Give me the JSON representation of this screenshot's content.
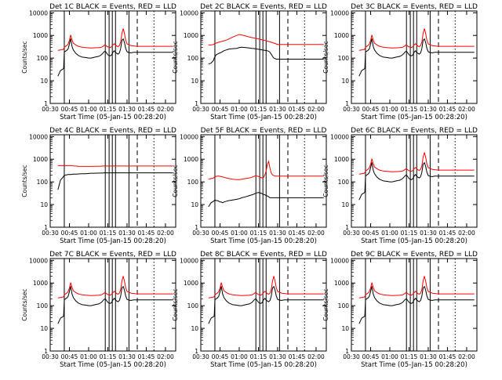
{
  "figure": {
    "y_axis_label": "Counts/sec",
    "x_axis_label": "Start Time (05-Jan-15 00:28:20)",
    "series_colors": {
      "events": "#000000",
      "lld": "#ff0000"
    },
    "panels": [
      {
        "title": "Det 1C BLACK = Events, RED = LLD"
      },
      {
        "title": "Det 2C BLACK = Events, RED = LLD"
      },
      {
        "title": "Det 3C BLACK = Events, RED = LLD"
      },
      {
        "title": "Det 4C BLACK = Events, RED = LLD"
      },
      {
        "title": "Det 5F BLACK = Events, RED = LLD"
      },
      {
        "title": "Det 6C BLACK = Events, RED = LLD"
      },
      {
        "title": "Det 7C BLACK = Events, RED = LLD"
      },
      {
        "title": "Det 8C BLACK = Events, RED = LLD"
      },
      {
        "title": "Det 9C BLACK = Events, RED = LLD"
      }
    ]
  },
  "chart_data": {
    "type": "line",
    "layout": "3x3 small multiples",
    "x_ticks": [
      "00:30",
      "00:45",
      "01:00",
      "01:15",
      "01:30",
      "01:45",
      "02:00"
    ],
    "x_tick_minutes": [
      30,
      45,
      60,
      75,
      90,
      105,
      120
    ],
    "xlim_minutes": [
      30,
      128
    ],
    "y_scale": "log",
    "ylim": [
      1,
      12000
    ],
    "y_ticks": [
      1,
      10,
      100,
      1000,
      10000
    ],
    "y_tick_labels": [
      "1",
      "10",
      "100",
      "1000",
      "10000"
    ],
    "vertical_markers": [
      {
        "style": "solid",
        "minutes": [
          41,
          73,
          76,
          78.5,
          81,
          91.5
        ]
      },
      {
        "style": "dashed",
        "minutes": [
          98
        ]
      },
      {
        "style": "dotted",
        "minutes": [
          111
        ]
      }
    ],
    "series_names": [
      "Events",
      "LLD"
    ],
    "series_x_minutes": [
      36,
      38,
      40,
      40.5,
      41,
      42,
      43,
      44,
      45,
      46,
      47,
      48,
      50,
      52,
      55,
      58,
      60,
      62,
      65,
      68,
      70,
      71,
      72,
      73,
      74,
      75,
      76,
      77,
      78,
      79,
      80,
      81,
      82,
      83,
      84,
      85,
      86,
      87,
      88,
      89,
      90,
      91,
      92,
      93,
      94,
      95,
      96,
      97,
      98,
      99,
      100,
      101,
      102,
      103,
      104,
      105,
      106,
      108,
      110,
      112,
      114,
      116,
      118,
      120,
      122,
      124,
      126
    ],
    "events": {
      "standard": [
        16,
        28,
        33,
        35,
        180,
        200,
        220,
        260,
        420,
        720,
        330,
        230,
        160,
        130,
        110,
        105,
        100,
        100,
        110,
        120,
        140,
        160,
        190,
        200,
        170,
        140,
        130,
        125,
        140,
        180,
        210,
        180,
        160,
        150,
        170,
        260,
        600,
        700,
        480,
        260,
        190,
        180,
        175,
        170,
        175,
        180,
        180,
        180,
        180,
        180,
        180,
        180,
        180,
        180,
        180,
        180,
        180,
        180,
        180,
        180,
        180,
        180,
        180,
        180,
        180,
        180,
        180
      ],
      "det2_events": [
        55,
        60,
        80,
        100,
        110,
        140,
        150,
        160,
        170,
        180,
        195,
        210,
        230,
        250,
        260,
        270,
        290,
        300,
        290,
        280,
        270,
        265,
        260,
        255,
        250,
        245,
        240,
        235,
        230,
        225,
        220,
        215,
        210,
        200,
        180,
        150,
        120,
        100,
        95,
        90,
        90,
        90,
        90,
        90,
        90,
        90,
        90,
        90,
        90,
        90,
        90,
        90,
        90,
        90,
        90,
        90,
        90,
        90,
        90,
        90,
        90,
        90,
        90,
        90,
        90,
        90,
        90
      ],
      "det4_events": [
        45,
        120,
        160,
        180,
        190,
        200,
        205,
        210,
        210,
        210,
        215,
        220,
        220,
        225,
        230,
        230,
        235,
        240,
        240,
        245,
        245,
        245,
        250,
        250,
        250,
        250,
        250,
        250,
        250,
        250,
        250,
        250,
        250,
        250,
        250,
        250,
        250,
        250,
        250,
        250,
        250,
        250,
        250,
        250,
        250,
        250,
        250,
        250,
        250,
        250,
        250,
        250,
        250,
        250,
        250,
        250,
        250,
        250,
        250,
        250,
        250,
        250,
        250,
        250,
        250,
        250,
        250
      ],
      "det5_events": [
        8,
        12,
        14,
        15,
        16,
        15,
        15,
        14,
        13,
        13,
        12,
        13,
        14,
        15,
        16,
        17,
        18,
        20,
        22,
        25,
        27,
        28,
        30,
        32,
        33,
        34,
        33,
        32,
        30,
        28,
        27,
        25,
        24,
        22,
        20,
        20,
        20,
        20,
        20,
        20,
        20,
        20,
        20,
        20,
        20,
        20,
        20,
        20,
        20,
        20,
        20,
        20,
        20,
        20,
        20,
        20,
        20,
        20,
        20,
        20,
        20,
        20,
        20,
        20,
        20,
        20,
        20
      ]
    },
    "lld": {
      "standard": [
        220,
        230,
        240,
        250,
        300,
        330,
        360,
        420,
        600,
        1050,
        650,
        460,
        380,
        330,
        300,
        290,
        285,
        280,
        285,
        290,
        300,
        320,
        360,
        380,
        340,
        310,
        300,
        295,
        320,
        380,
        430,
        380,
        340,
        320,
        360,
        500,
        1200,
        2000,
        1200,
        600,
        420,
        400,
        380,
        360,
        350,
        345,
        340,
        335,
        330,
        330,
        330,
        330,
        330,
        330,
        330,
        330,
        330,
        330,
        330,
        330,
        330,
        330,
        330,
        330,
        330,
        330,
        330
      ],
      "det2_lld": [
        380,
        380,
        400,
        420,
        440,
        460,
        480,
        500,
        520,
        540,
        560,
        580,
        620,
        700,
        850,
        1000,
        1100,
        1050,
        950,
        850,
        800,
        780,
        760,
        740,
        720,
        700,
        680,
        660,
        640,
        620,
        600,
        580,
        560,
        540,
        520,
        500,
        480,
        460,
        440,
        420,
        400,
        400,
        400,
        400,
        400,
        400,
        400,
        400,
        400,
        400,
        400,
        400,
        400,
        400,
        400,
        400,
        400,
        400,
        400,
        400,
        400,
        400,
        400,
        400,
        400,
        400,
        400
      ],
      "det4_lld": [
        520,
        520,
        520,
        520,
        520,
        520,
        520,
        520,
        520,
        520,
        520,
        510,
        500,
        490,
        480,
        480,
        480,
        480,
        485,
        490,
        495,
        500,
        500,
        500,
        500,
        500,
        500,
        500,
        500,
        500,
        500,
        500,
        500,
        500,
        500,
        500,
        500,
        500,
        500,
        500,
        500,
        500,
        500,
        500,
        500,
        500,
        500,
        500,
        500,
        500,
        500,
        500,
        500,
        500,
        500,
        500,
        500,
        500,
        500,
        500,
        500,
        500,
        500,
        500,
        500,
        500,
        500
      ],
      "det5_lld": [
        130,
        140,
        150,
        160,
        170,
        175,
        180,
        180,
        175,
        170,
        165,
        160,
        150,
        140,
        130,
        125,
        125,
        130,
        140,
        150,
        160,
        170,
        180,
        185,
        180,
        175,
        165,
        155,
        150,
        160,
        200,
        300,
        600,
        800,
        400,
        250,
        200,
        190,
        180,
        180,
        180,
        180,
        180,
        180,
        180,
        180,
        180,
        180,
        180,
        180,
        180,
        180,
        180,
        180,
        180,
        180,
        180,
        180,
        180,
        180,
        180,
        180,
        180,
        180,
        180,
        180,
        180
      ]
    },
    "panel_series": [
      {
        "events": "standard",
        "lld": "standard"
      },
      {
        "events": "det2_events",
        "lld": "det2_lld"
      },
      {
        "events": "standard",
        "lld": "standard"
      },
      {
        "events": "det4_events",
        "lld": "det4_lld"
      },
      {
        "events": "det5_events",
        "lld": "det5_lld"
      },
      {
        "events": "standard",
        "lld": "standard"
      },
      {
        "events": "standard",
        "lld": "standard"
      },
      {
        "events": "standard",
        "lld": "standard"
      },
      {
        "events": "standard",
        "lld": "standard"
      }
    ]
  }
}
